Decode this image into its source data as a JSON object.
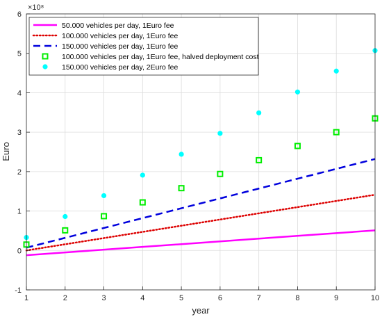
{
  "chart_data": {
    "type": "line",
    "xlabel": "year",
    "ylabel": "Euro",
    "y_exponent_label": "×10⁸",
    "y_scale_factor": 100000000,
    "xlim": [
      1,
      10
    ],
    "ylim": [
      -1,
      6
    ],
    "x_ticks": [
      1,
      2,
      3,
      4,
      5,
      6,
      7,
      8,
      9,
      10
    ],
    "y_ticks": [
      -1,
      0,
      1,
      2,
      3,
      4,
      5,
      6
    ],
    "grid": true,
    "legend_position": "top-left",
    "x": [
      1,
      2,
      3,
      4,
      5,
      6,
      7,
      8,
      9,
      10
    ],
    "series": [
      {
        "name": "50.000 vehicles per day, 1Euro fee",
        "style": "solid-line",
        "color": "#ff00ff",
        "values": [
          -0.12,
          -0.05,
          0.02,
          0.09,
          0.16,
          0.23,
          0.3,
          0.37,
          0.44,
          0.51
        ]
      },
      {
        "name": "100.000 vehicles per day, 1Euro fee",
        "style": "dotted-line",
        "color": "#dd0000",
        "values": [
          0.0,
          0.157,
          0.314,
          0.471,
          0.628,
          0.785,
          0.942,
          1.099,
          1.256,
          1.413
        ]
      },
      {
        "name": "150.000 vehicles  per day, 1Euro fee",
        "style": "dashed-line",
        "color": "#0000dd",
        "values": [
          0.07,
          0.32,
          0.57,
          0.82,
          1.07,
          1.32,
          1.57,
          1.82,
          2.07,
          2.32
        ]
      },
      {
        "name": "100.000 vehicles per day, 1Euro fee, halved deployment cost",
        "style": "square-markers",
        "color": "#00ee00",
        "values": [
          0.15,
          0.51,
          0.87,
          1.22,
          1.58,
          1.94,
          2.29,
          2.65,
          3.0,
          3.35
        ]
      },
      {
        "name": "150.000 vehicles per day, 2Euro fee",
        "style": "circle-markers",
        "color": "#00ffff",
        "values": [
          0.33,
          0.86,
          1.39,
          1.91,
          2.44,
          2.97,
          3.49,
          4.02,
          4.55,
          5.07
        ]
      }
    ]
  }
}
